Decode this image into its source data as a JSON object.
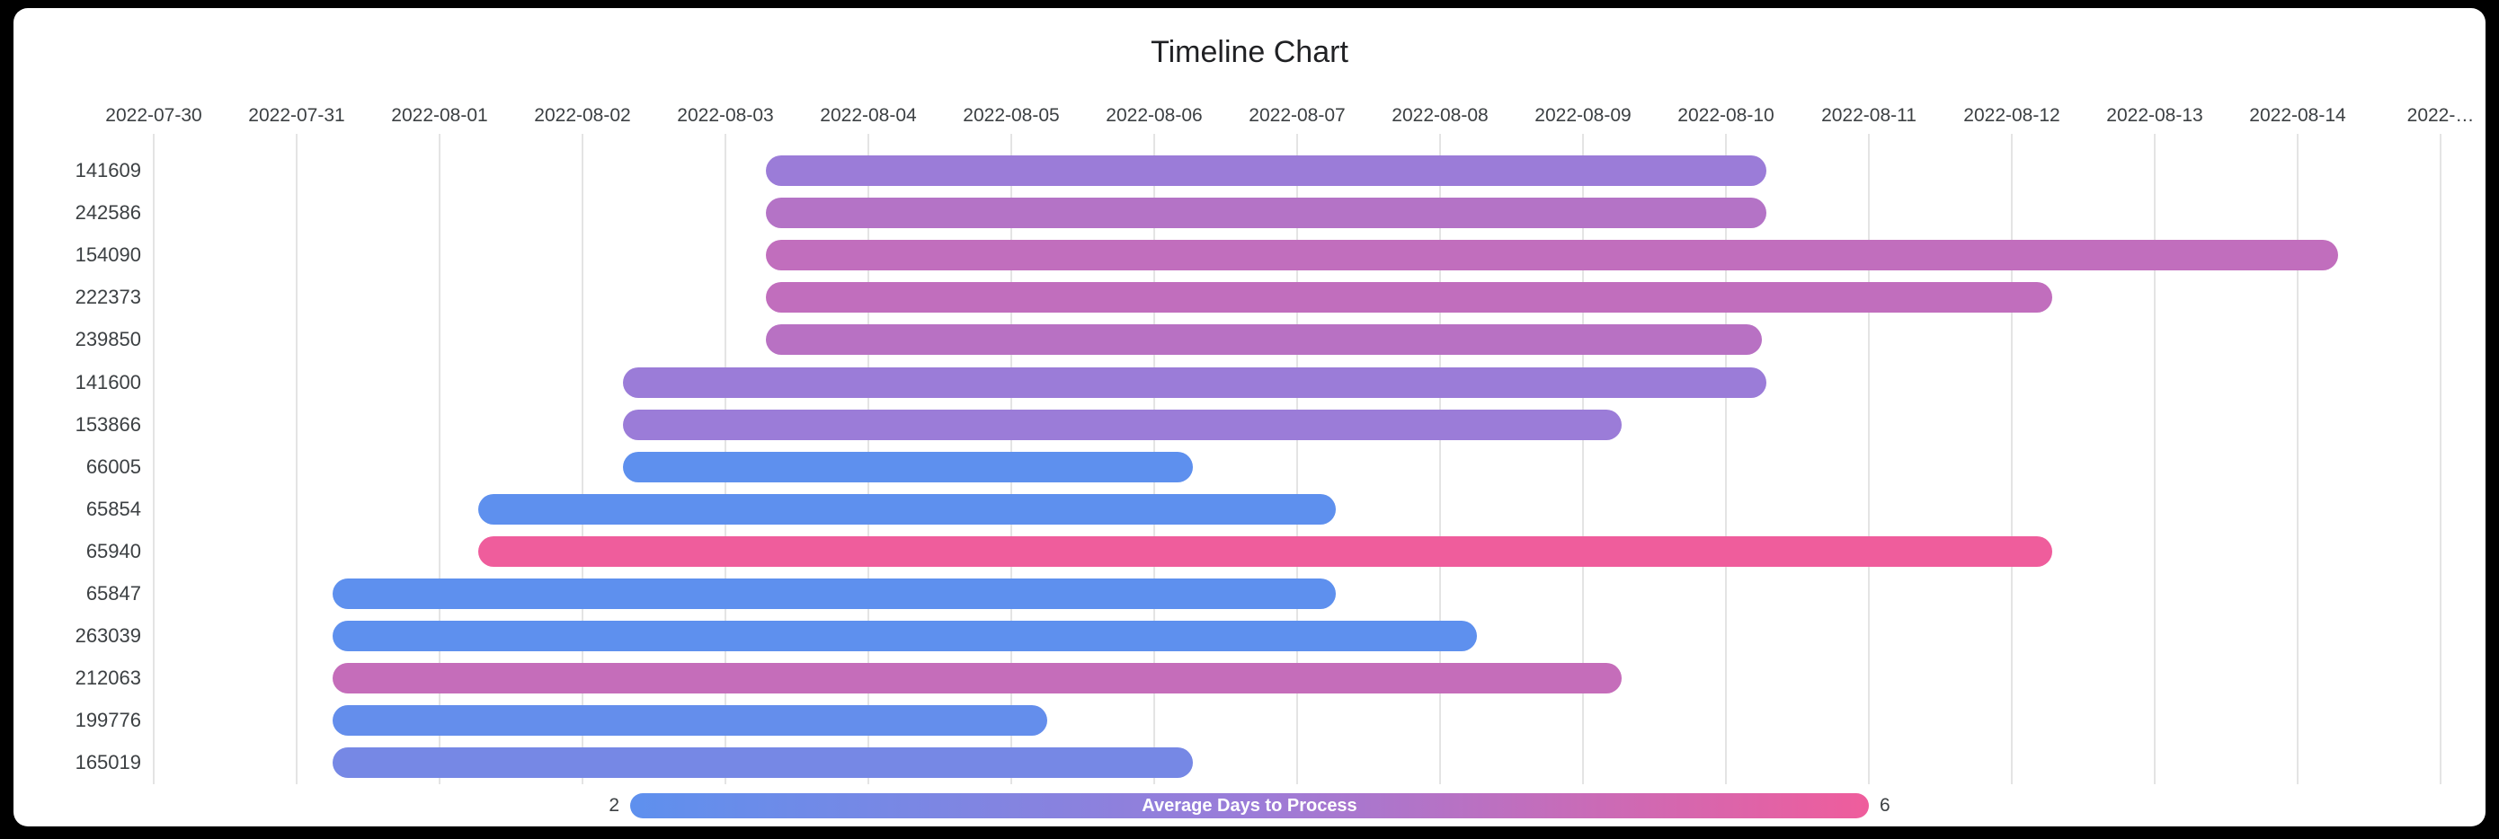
{
  "page": {
    "frame_color": "#000000",
    "card_color": "#ffffff"
  },
  "chart_data": {
    "type": "timeline",
    "title": "Timeline Chart",
    "x_axis": {
      "start_date": "2022-07-30",
      "tick_labels": [
        "2022-07-30",
        "2022-07-31",
        "2022-08-01",
        "2022-08-02",
        "2022-08-03",
        "2022-08-04",
        "2022-08-05",
        "2022-08-06",
        "2022-08-07",
        "2022-08-08",
        "2022-08-09",
        "2022-08-10",
        "2022-08-11",
        "2022-08-12",
        "2022-08-13",
        "2022-08-14",
        "2022-…"
      ],
      "grid": true
    },
    "ylabel": "",
    "xlabel": "",
    "legend": {
      "label": "Average Days to Process",
      "min": 2,
      "max": 6,
      "position": "bottom",
      "colors": [
        "#5E90EE",
        "#9B7CD8",
        "#EF5D9C"
      ]
    },
    "rows": [
      {
        "id": "141609",
        "start": "2022-08-03",
        "end": "2022-08-10",
        "start_day": 4.28,
        "end_day": 11.28,
        "avg_days": 4.0
      },
      {
        "id": "242586",
        "start": "2022-08-03",
        "end": "2022-08-10",
        "start_day": 4.28,
        "end_day": 11.28,
        "avg_days": 4.6
      },
      {
        "id": "154090",
        "start": "2022-08-03",
        "end": "2022-08-14",
        "start_day": 4.28,
        "end_day": 15.28,
        "avg_days": 4.9
      },
      {
        "id": "222373",
        "start": "2022-08-03",
        "end": "2022-08-12",
        "start_day": 4.28,
        "end_day": 13.28,
        "avg_days": 4.9
      },
      {
        "id": "239850",
        "start": "2022-08-03",
        "end": "2022-08-10",
        "start_day": 4.28,
        "end_day": 11.25,
        "avg_days": 4.7
      },
      {
        "id": "141600",
        "start": "2022-08-02",
        "end": "2022-08-10",
        "start_day": 3.28,
        "end_day": 11.28,
        "avg_days": 4.0
      },
      {
        "id": "153866",
        "start": "2022-08-02",
        "end": "2022-08-09",
        "start_day": 3.28,
        "end_day": 10.27,
        "avg_days": 4.0
      },
      {
        "id": "66005",
        "start": "2022-08-02",
        "end": "2022-08-06",
        "start_day": 3.28,
        "end_day": 7.27,
        "avg_days": 2.0
      },
      {
        "id": "65854",
        "start": "2022-08-01",
        "end": "2022-08-07",
        "start_day": 2.27,
        "end_day": 8.27,
        "avg_days": 2.0
      },
      {
        "id": "65940",
        "start": "2022-08-01",
        "end": "2022-08-12",
        "start_day": 2.27,
        "end_day": 13.28,
        "avg_days": 6.0
      },
      {
        "id": "65847",
        "start": "2022-07-31",
        "end": "2022-08-07",
        "start_day": 1.25,
        "end_day": 8.27,
        "avg_days": 2.0
      },
      {
        "id": "263039",
        "start": "2022-07-31",
        "end": "2022-08-08",
        "start_day": 1.25,
        "end_day": 9.26,
        "avg_days": 2.0
      },
      {
        "id": "212063",
        "start": "2022-07-31",
        "end": "2022-08-09",
        "start_day": 1.25,
        "end_day": 10.27,
        "avg_days": 5.0
      },
      {
        "id": "199776",
        "start": "2022-07-31",
        "end": "2022-08-05",
        "start_day": 1.25,
        "end_day": 6.25,
        "avg_days": 2.2
      },
      {
        "id": "165019",
        "start": "2022-07-31",
        "end": "2022-08-06",
        "start_day": 1.25,
        "end_day": 7.27,
        "avg_days": 2.8
      }
    ]
  }
}
